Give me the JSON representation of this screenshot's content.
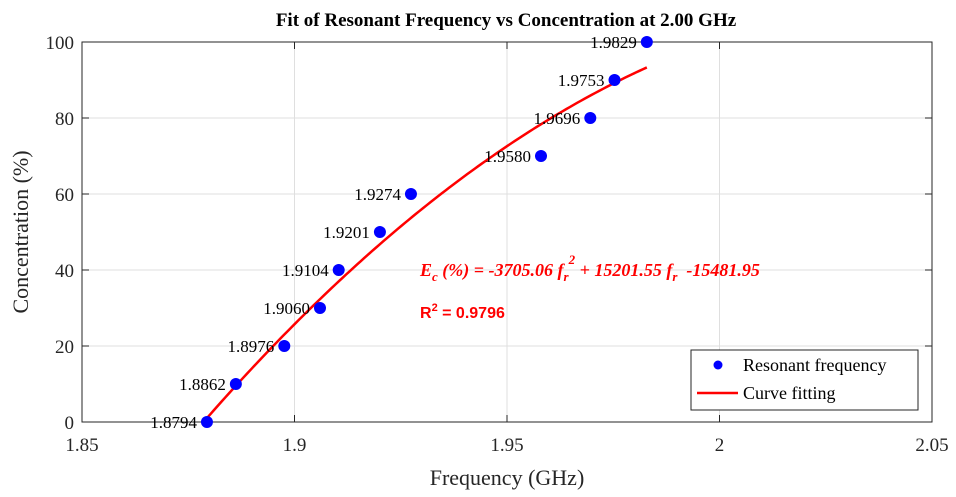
{
  "chart_data": {
    "type": "scatter",
    "title": "Fit of Resonant Frequency vs Concentration at 2.00 GHz",
    "xlabel": "Frequency (GHz)",
    "ylabel": "Concentration (%)",
    "xlim": [
      1.85,
      2.05
    ],
    "ylim": [
      0,
      100
    ],
    "xticks": [
      1.85,
      1.9,
      1.95,
      2.0,
      2.05
    ],
    "xtick_labels": [
      "1.85",
      "1.9",
      "1.95",
      "2",
      "2.05"
    ],
    "yticks": [
      0,
      20,
      40,
      60,
      80,
      100
    ],
    "ytick_labels": [
      "0",
      "20",
      "40",
      "60",
      "80",
      "100"
    ],
    "grid": true,
    "series": [
      {
        "name": "Resonant frequency",
        "kind": "scatter",
        "color": "#0000ff",
        "x": [
          1.8794,
          1.8862,
          1.8976,
          1.906,
          1.9104,
          1.9201,
          1.9274,
          1.958,
          1.9696,
          1.9753,
          1.9829
        ],
        "y": [
          0,
          10,
          20,
          30,
          40,
          50,
          60,
          70,
          80,
          90,
          100
        ],
        "labels": [
          "1.8794",
          "1.8862",
          "1.8976",
          "1.9060",
          "1.9104",
          "1.9201",
          "1.9274",
          "1.9580",
          "1.9696",
          "1.9753",
          "1.9829"
        ]
      },
      {
        "name": "Curve fitting",
        "kind": "line",
        "color": "#ff0000",
        "coefficients": {
          "a": -3705.06,
          "b": 15201.55,
          "c": -15481.95
        },
        "x_range": [
          1.8794,
          1.9829
        ]
      }
    ],
    "annotations": {
      "equation": {
        "lhs_symbol": "E",
        "lhs_sub": "c",
        "lhs_rest": " (%) = -3705.06 ",
        "f1": "f",
        "f1_sub": "r",
        "f1_sup": "2",
        "mid": " + 15201.55 ",
        "f2": "f",
        "f2_sub": "r",
        "tail": "  -15481.95",
        "color": "#ff0000"
      },
      "r2": {
        "label": "R",
        "sup": "2",
        "value": " = 0.9796",
        "color": "#ff0000"
      }
    },
    "legend": {
      "position": "bottom-right",
      "entries": [
        "Resonant frequency",
        "Curve fitting"
      ]
    }
  }
}
